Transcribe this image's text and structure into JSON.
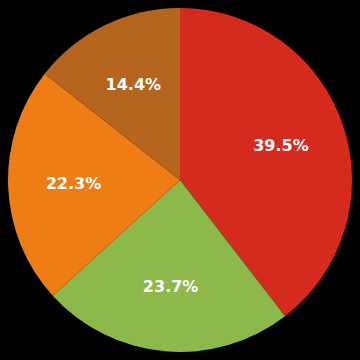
{
  "chart_data": {
    "type": "pie",
    "values": [
      39.5,
      23.7,
      22.3,
      14.4
    ],
    "value_labels": [
      "39.5%",
      "23.7%",
      "22.3%",
      "14.4%"
    ],
    "colors": [
      "#d42b1e",
      "#8db84a",
      "#f07c16",
      "#b5651d"
    ],
    "data_labels": true
  }
}
